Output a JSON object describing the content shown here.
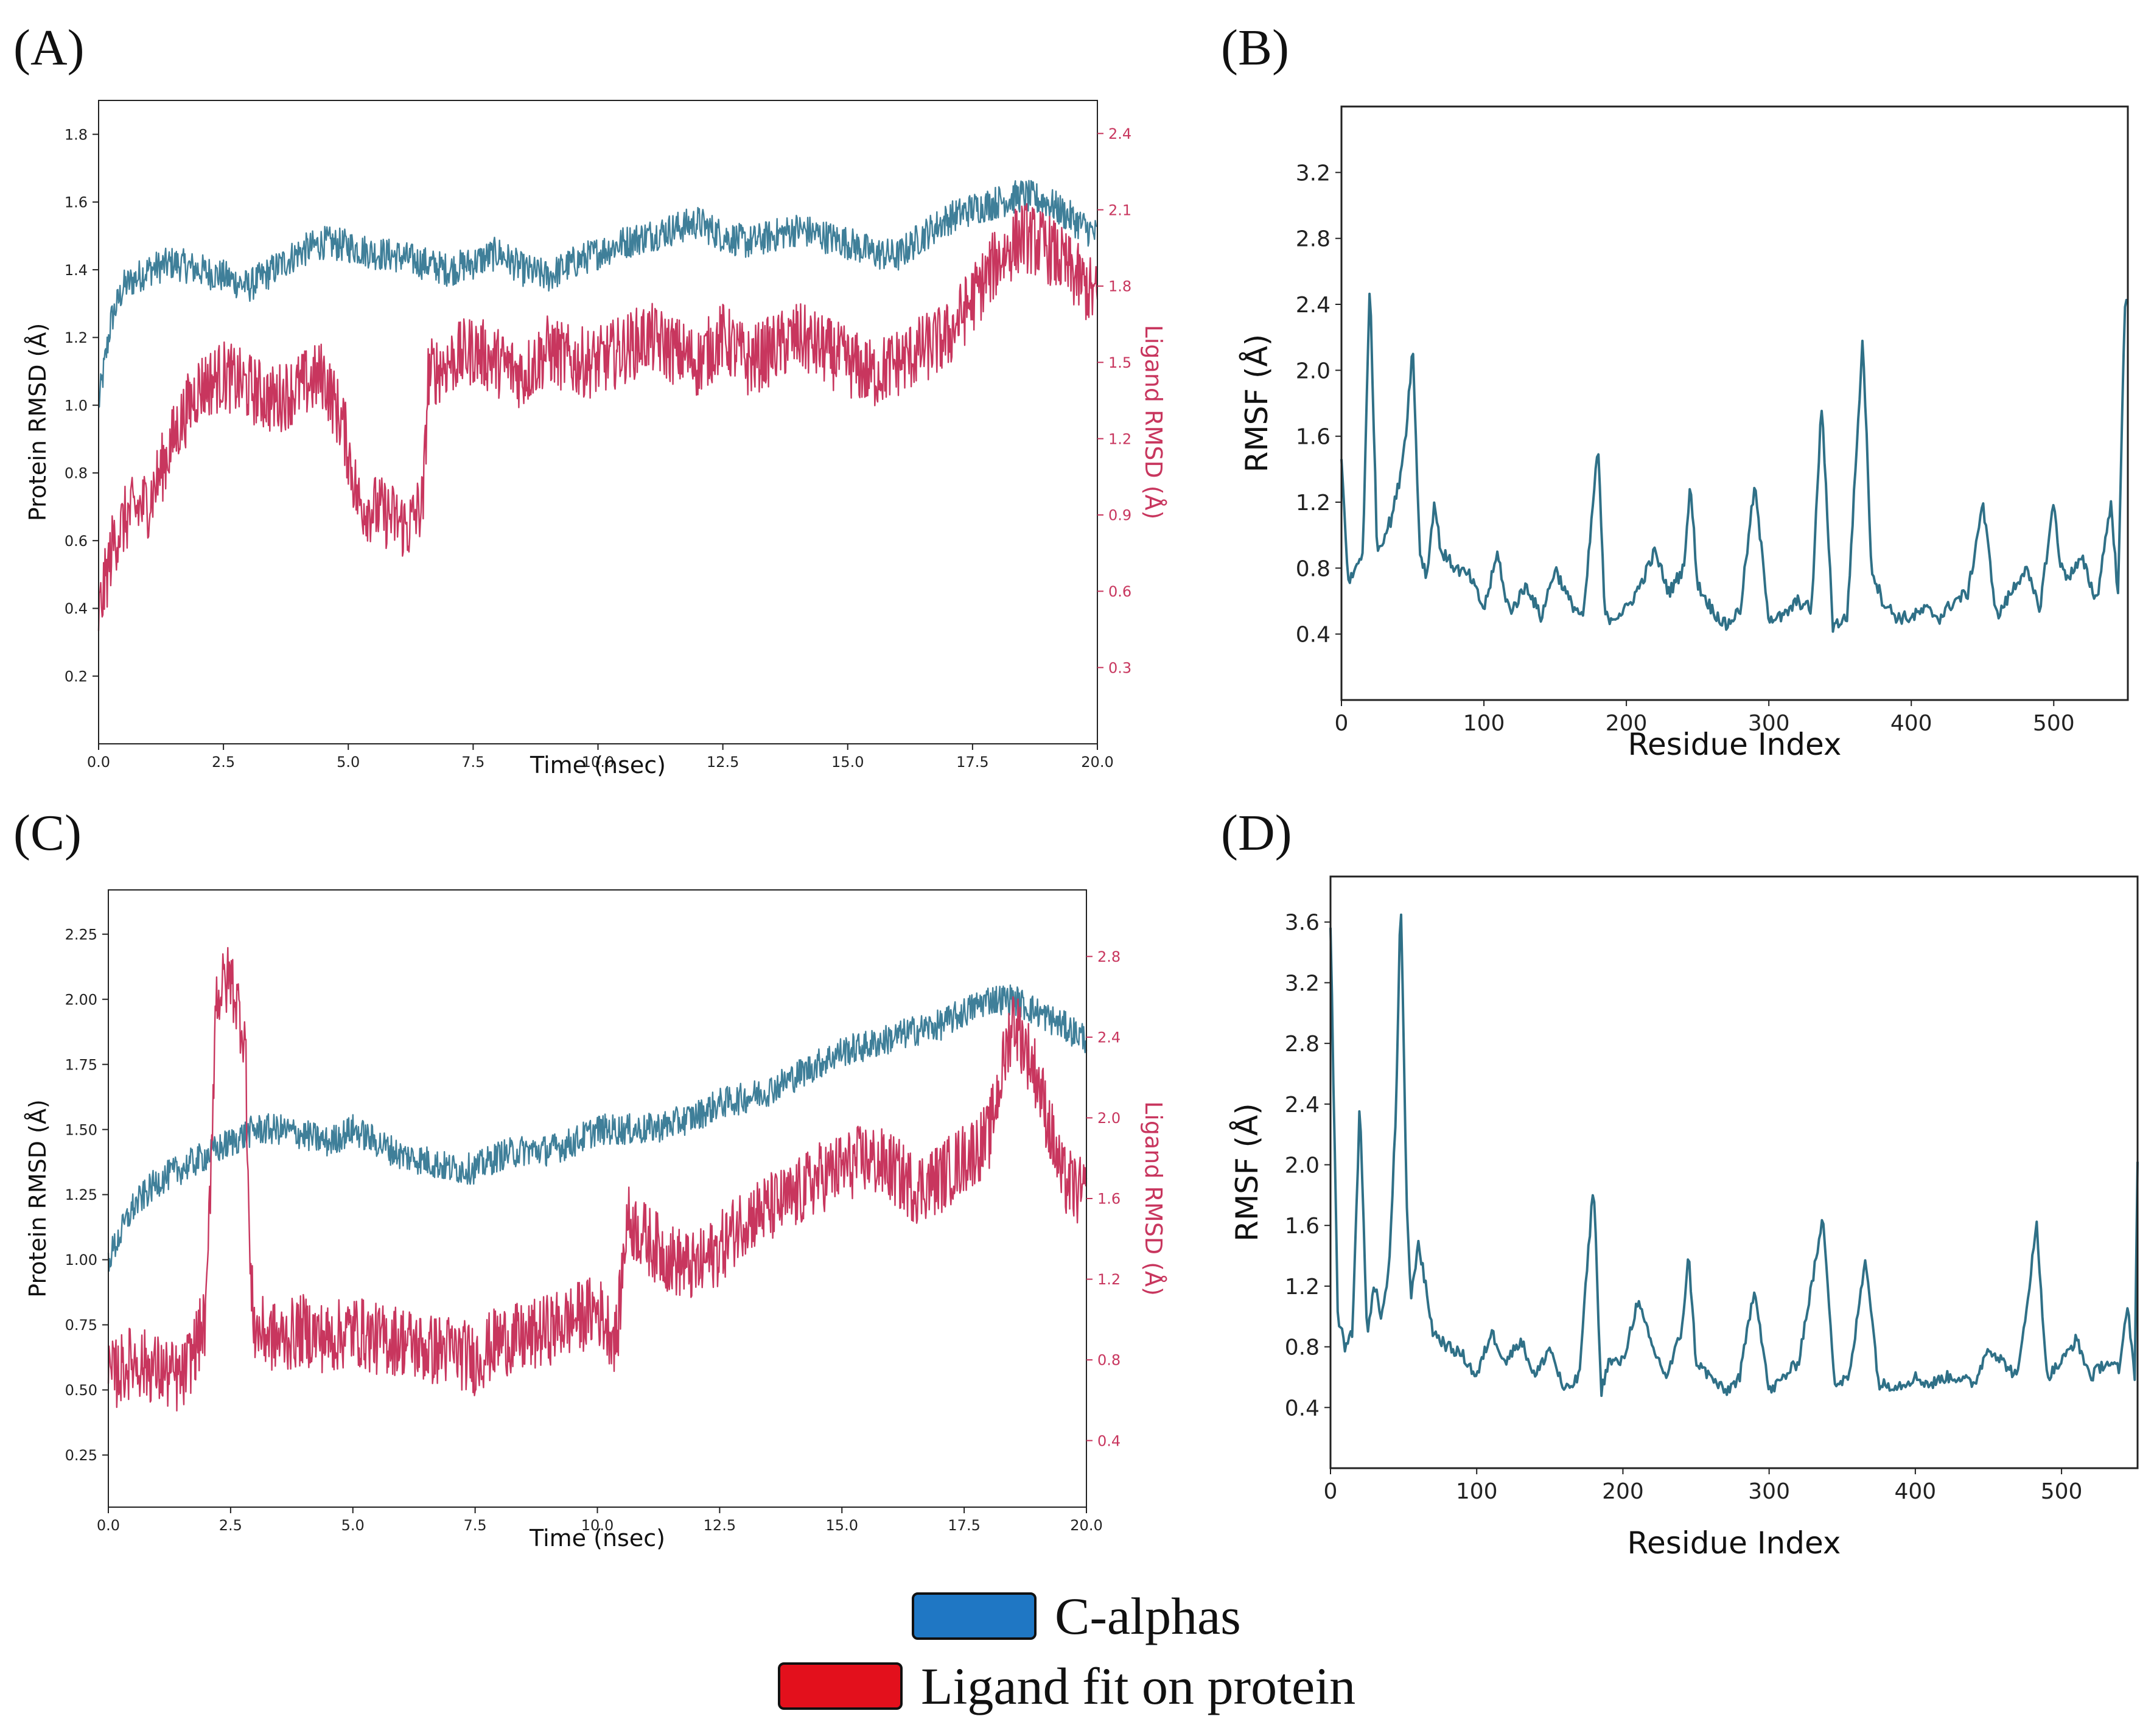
{
  "panels": {
    "a": "(A)",
    "b": "(B)",
    "c": "(C)",
    "d": "(D)"
  },
  "legend": [
    {
      "label": "C-alphas",
      "color": "#1f77c4"
    },
    {
      "label": "Ligand fit on protein",
      "color": "#e3101c"
    }
  ],
  "chart_data": [
    {
      "id": "A",
      "type": "line",
      "xlabel": "Time (nsec)",
      "ylabel": "Protein RMSD (Å)",
      "y2label": "Ligand RMSD (Å)",
      "xlim": [
        0,
        20
      ],
      "ylim": [
        0.0,
        1.9
      ],
      "y2lim": [
        0.0,
        2.53
      ],
      "xticks": [
        "0.0",
        "2.5",
        "5.0",
        "7.5",
        "10.0",
        "12.5",
        "15.0",
        "17.5",
        "20.0"
      ],
      "yticks": [
        "0.2",
        "0.4",
        "0.6",
        "0.8",
        "1.0",
        "1.2",
        "1.4",
        "1.6",
        "1.8"
      ],
      "y2ticks": [
        "0.3",
        "0.6",
        "0.9",
        "1.2",
        "1.5",
        "1.8",
        "2.1",
        "2.4"
      ],
      "series": [
        {
          "name": "C-alphas",
          "axis": "left",
          "color": "#3f7f99",
          "x": [
            0,
            0.25,
            0.5,
            1,
            1.5,
            2,
            2.5,
            3,
            3.5,
            4,
            4.5,
            5,
            5.5,
            6,
            6.5,
            7,
            7.5,
            8,
            8.5,
            9,
            9.5,
            10,
            10.5,
            11,
            11.5,
            12,
            12.5,
            13,
            13.5,
            14,
            14.5,
            15,
            15.5,
            16,
            16.5,
            17,
            17.5,
            18,
            18.5,
            19,
            19.5,
            20
          ],
          "y": [
            1.0,
            1.25,
            1.35,
            1.4,
            1.42,
            1.4,
            1.38,
            1.35,
            1.4,
            1.45,
            1.48,
            1.47,
            1.45,
            1.44,
            1.42,
            1.4,
            1.42,
            1.45,
            1.4,
            1.38,
            1.42,
            1.45,
            1.48,
            1.5,
            1.52,
            1.54,
            1.5,
            1.48,
            1.5,
            1.52,
            1.5,
            1.48,
            1.45,
            1.44,
            1.5,
            1.55,
            1.58,
            1.6,
            1.62,
            1.6,
            1.55,
            1.5
          ],
          "noise": 0.05
        },
        {
          "name": "Ligand fit on protein",
          "axis": "right",
          "color": "#c8365e",
          "x": [
            0,
            0.3,
            0.6,
            1,
            1.3,
            1.6,
            2,
            2.5,
            3,
            3.5,
            4,
            4.5,
            4.9,
            5.2,
            5.8,
            6.2,
            6.5,
            6.6,
            7,
            7.5,
            8,
            8.5,
            9,
            9.5,
            10,
            10.5,
            11,
            11.5,
            12,
            12.5,
            13,
            13.5,
            14,
            14.5,
            15,
            15.5,
            16,
            16.5,
            17,
            17.5,
            18,
            18.5,
            19,
            19.5,
            20
          ],
          "y": [
            0.5,
            0.8,
            0.9,
            0.95,
            1.1,
            1.25,
            1.4,
            1.45,
            1.4,
            1.35,
            1.4,
            1.45,
            1.25,
            0.95,
            0.9,
            0.85,
            0.95,
            1.45,
            1.5,
            1.55,
            1.5,
            1.45,
            1.55,
            1.5,
            1.5,
            1.55,
            1.6,
            1.55,
            1.5,
            1.6,
            1.5,
            1.55,
            1.6,
            1.55,
            1.5,
            1.45,
            1.5,
            1.55,
            1.6,
            1.75,
            1.9,
            2.0,
            1.95,
            1.85,
            1.75
          ],
          "noise": 0.14
        }
      ]
    },
    {
      "id": "B",
      "type": "line",
      "xlabel": "Residue Index",
      "ylabel": "RMSF (Å)",
      "xlim": [
        0,
        552
      ],
      "ylim": [
        0.0,
        3.6
      ],
      "xticks": [
        "0",
        "100",
        "200",
        "300",
        "400",
        "500"
      ],
      "yticks": [
        "0.4",
        "0.8",
        "1.2",
        "1.6",
        "2.0",
        "2.4",
        "2.8",
        "3.2"
      ],
      "series": [
        {
          "name": "RMSF",
          "color": "#2f7087",
          "x": [
            0,
            5,
            10,
            15,
            20,
            25,
            30,
            35,
            40,
            45,
            50,
            55,
            60,
            65,
            70,
            80,
            90,
            100,
            110,
            115,
            120,
            130,
            140,
            150,
            160,
            170,
            180,
            185,
            190,
            200,
            210,
            220,
            230,
            240,
            245,
            250,
            260,
            270,
            280,
            290,
            300,
            310,
            320,
            330,
            337,
            345,
            355,
            366,
            372,
            380,
            390,
            400,
            410,
            420,
            430,
            440,
            450,
            460,
            470,
            480,
            490,
            500,
            505,
            510,
            520,
            530,
            540,
            545,
            550
          ],
          "y": [
            1.45,
            0.7,
            0.8,
            0.9,
            2.55,
            0.9,
            1.0,
            1.1,
            1.3,
            1.6,
            2.15,
            0.9,
            0.75,
            1.2,
            0.9,
            0.8,
            0.75,
            0.55,
            0.9,
            0.6,
            0.55,
            0.7,
            0.5,
            0.8,
            0.6,
            0.5,
            1.55,
            0.5,
            0.5,
            0.55,
            0.7,
            0.9,
            0.65,
            0.8,
            1.3,
            0.7,
            0.55,
            0.45,
            0.55,
            1.3,
            0.5,
            0.5,
            0.6,
            0.55,
            1.8,
            0.45,
            0.5,
            2.2,
            0.8,
            0.6,
            0.5,
            0.5,
            0.55,
            0.5,
            0.6,
            0.65,
            1.2,
            0.5,
            0.65,
            0.8,
            0.55,
            1.2,
            0.8,
            0.75,
            0.85,
            0.6,
            1.2,
            0.65,
            2.4
          ],
          "noise": 0.04
        }
      ]
    },
    {
      "id": "C",
      "type": "line",
      "xlabel": "Time (nsec)",
      "ylabel": "Protein RMSD (Å)",
      "y2label": "Ligand RMSD (Å)",
      "xlim": [
        0,
        20
      ],
      "ylim": [
        0.05,
        2.42
      ],
      "y2lim": [
        0.07,
        3.13
      ],
      "xticks": [
        "0.0",
        "2.5",
        "5.0",
        "7.5",
        "10.0",
        "12.5",
        "15.0",
        "17.5",
        "20.0"
      ],
      "yticks": [
        "0.25",
        "0.50",
        "0.75",
        "1.00",
        "1.25",
        "1.50",
        "1.75",
        "2.00",
        "2.25"
      ],
      "y2ticks": [
        "0.4",
        "0.8",
        "1.2",
        "1.6",
        "2.0",
        "2.4",
        "2.8"
      ],
      "series": [
        {
          "name": "C-alphas",
          "axis": "left",
          "color": "#3f7f99",
          "x": [
            0,
            0.5,
            1,
            1.5,
            2,
            2.5,
            3,
            3.5,
            4,
            4.5,
            5,
            5.5,
            6,
            6.5,
            7,
            7.5,
            8,
            8.5,
            9,
            9.5,
            10,
            10.5,
            11,
            11.5,
            12,
            12.5,
            13,
            13.5,
            14,
            14.5,
            15,
            15.5,
            16,
            16.5,
            17,
            17.5,
            18,
            18.5,
            19,
            19.5,
            20
          ],
          "y": [
            1.0,
            1.2,
            1.3,
            1.35,
            1.4,
            1.45,
            1.5,
            1.5,
            1.48,
            1.45,
            1.5,
            1.45,
            1.4,
            1.38,
            1.35,
            1.35,
            1.4,
            1.42,
            1.42,
            1.45,
            1.5,
            1.5,
            1.5,
            1.52,
            1.55,
            1.6,
            1.62,
            1.65,
            1.7,
            1.75,
            1.8,
            1.82,
            1.85,
            1.88,
            1.9,
            1.95,
            2.0,
            2.0,
            1.95,
            1.9,
            1.85
          ],
          "noise": 0.06
        },
        {
          "name": "Ligand fit on protein",
          "axis": "right",
          "color": "#c8365e",
          "x": [
            0,
            0.5,
            1,
            1.5,
            2,
            2.2,
            2.5,
            2.8,
            2.9,
            3,
            3.5,
            4,
            4.5,
            5,
            5.5,
            6,
            6.5,
            7,
            7.5,
            8,
            8.5,
            9,
            9.5,
            10,
            10.4,
            10.6,
            11,
            11.5,
            12,
            12.5,
            13,
            13.5,
            14,
            14.5,
            15,
            15.5,
            16,
            16.5,
            17,
            17.5,
            18,
            18.5,
            19,
            19.5,
            20
          ],
          "y": [
            0.7,
            0.8,
            0.75,
            0.7,
            1.0,
            2.6,
            2.7,
            2.4,
            1.2,
            0.95,
            0.9,
            0.95,
            0.9,
            0.95,
            0.9,
            0.9,
            0.85,
            0.85,
            0.8,
            0.9,
            0.9,
            0.95,
            1.0,
            1.05,
            0.9,
            1.5,
            1.4,
            1.3,
            1.25,
            1.35,
            1.5,
            1.55,
            1.6,
            1.7,
            1.75,
            1.8,
            1.75,
            1.65,
            1.7,
            1.8,
            1.9,
            2.5,
            2.2,
            1.7,
            1.6
          ],
          "noise": 0.18
        }
      ]
    },
    {
      "id": "D",
      "type": "line",
      "xlabel": "Residue Index",
      "ylabel": "RMSF (Å)",
      "xlim": [
        0,
        552
      ],
      "ylim": [
        0.0,
        3.9
      ],
      "xticks": [
        "0",
        "100",
        "200",
        "300",
        "400",
        "500"
      ],
      "yticks": [
        "0.4",
        "0.8",
        "1.2",
        "1.6",
        "2.0",
        "2.4",
        "2.8",
        "3.2",
        "3.6"
      ],
      "series": [
        {
          "name": "RMSF",
          "color": "#2f7087",
          "x": [
            0,
            5,
            10,
            15,
            20,
            25,
            30,
            35,
            40,
            45,
            48,
            52,
            55,
            60,
            65,
            70,
            80,
            90,
            100,
            110,
            120,
            130,
            140,
            150,
            160,
            170,
            180,
            185,
            190,
            200,
            210,
            220,
            230,
            240,
            245,
            250,
            260,
            270,
            280,
            290,
            300,
            310,
            320,
            337,
            345,
            355,
            366,
            375,
            390,
            400,
            410,
            420,
            430,
            440,
            450,
            460,
            470,
            483,
            490,
            500,
            510,
            520,
            530,
            540,
            545,
            550,
            552
          ],
          "y": [
            3.6,
            1.0,
            0.8,
            0.9,
            2.4,
            0.9,
            1.2,
            1.0,
            1.3,
            2.4,
            3.8,
            1.8,
            1.1,
            1.5,
            1.2,
            0.9,
            0.8,
            0.75,
            0.6,
            0.9,
            0.7,
            0.85,
            0.6,
            0.8,
            0.5,
            0.6,
            1.9,
            0.5,
            0.7,
            0.7,
            1.1,
            0.8,
            0.6,
            0.9,
            1.4,
            0.7,
            0.6,
            0.5,
            0.6,
            1.2,
            0.5,
            0.6,
            0.7,
            1.65,
            0.55,
            0.6,
            1.4,
            0.55,
            0.55,
            0.6,
            0.55,
            0.6,
            0.6,
            0.55,
            0.8,
            0.7,
            0.6,
            1.6,
            0.6,
            0.7,
            0.85,
            0.6,
            0.7,
            0.65,
            1.1,
            0.6,
            2.0
          ],
          "noise": 0.04
        }
      ]
    }
  ]
}
